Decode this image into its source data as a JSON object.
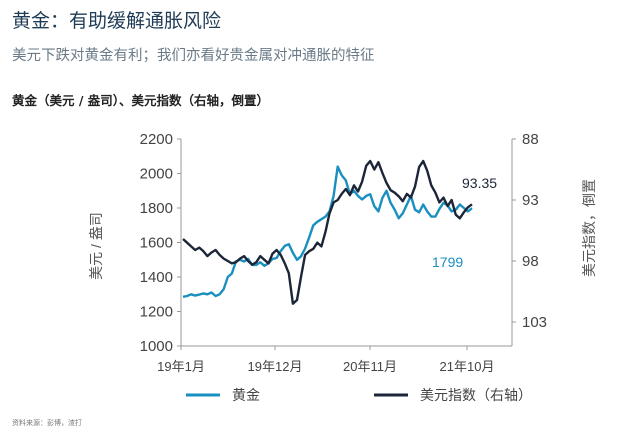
{
  "header": {
    "title": "黄金：有助缓解通胀风险",
    "subtitle": "美元下跌对黄金有利；我们亦看好贵金属对冲通胀的特征"
  },
  "chart_data": {
    "type": "line",
    "title": "黄金（美元 / 盎司）、美元指数（右轴，倒置）",
    "ylabel": "美元 / 盎司",
    "y2label": "美元指数，倒置",
    "ylim": [
      1000,
      2200
    ],
    "y2lim": [
      88,
      105
    ],
    "y2_inverted": true,
    "yticks": [
      "2200",
      "2000",
      "1800",
      "1600",
      "1400",
      "1200",
      "1000"
    ],
    "y2ticks": [
      "88",
      "93",
      "98",
      "103"
    ],
    "xticks": [
      "19年1月",
      "19年12月",
      "20年11月",
      "21年10月"
    ],
    "series": [
      {
        "name": "黄金",
        "color": "#1a8fc0",
        "axis": "left",
        "last_label": "1799",
        "x": [
          0,
          2,
          4,
          6,
          8,
          10,
          12,
          14,
          16,
          18,
          20,
          22,
          24,
          26,
          28,
          30,
          32,
          34,
          36,
          38,
          40,
          42,
          44,
          46,
          48,
          50,
          52,
          54,
          56,
          58,
          60,
          62,
          64,
          66,
          68,
          70,
          72,
          74,
          76,
          78,
          80,
          82,
          84,
          86,
          88,
          90,
          92,
          94,
          96,
          98,
          100,
          102,
          104,
          106,
          108,
          110,
          112,
          114,
          116,
          118,
          120,
          122,
          124,
          126,
          128,
          130,
          132,
          134,
          136,
          138,
          140,
          142
        ],
        "values": [
          1285,
          1290,
          1300,
          1292,
          1298,
          1305,
          1300,
          1310,
          1290,
          1300,
          1330,
          1400,
          1420,
          1490,
          1500,
          1490,
          1505,
          1470,
          1470,
          1485,
          1465,
          1480,
          1505,
          1510,
          1550,
          1580,
          1590,
          1540,
          1500,
          1520,
          1565,
          1630,
          1700,
          1720,
          1735,
          1750,
          1780,
          1870,
          2040,
          1990,
          1960,
          1880,
          1900,
          1870,
          1850,
          1870,
          1880,
          1810,
          1780,
          1860,
          1900,
          1830,
          1790,
          1740,
          1770,
          1820,
          1870,
          1790,
          1775,
          1820,
          1780,
          1750,
          1750,
          1795,
          1830,
          1815,
          1780,
          1790,
          1820,
          1800,
          1780,
          1799
        ]
      },
      {
        "name": "美元指数（右轴）",
        "color": "#1c2638",
        "axis": "right",
        "last_label": "93.35",
        "x": [
          0,
          2,
          4,
          6,
          8,
          10,
          12,
          14,
          16,
          18,
          20,
          22,
          24,
          26,
          28,
          30,
          32,
          34,
          36,
          38,
          40,
          42,
          44,
          46,
          48,
          50,
          52,
          54,
          56,
          58,
          60,
          62,
          64,
          66,
          68,
          70,
          72,
          74,
          76,
          78,
          80,
          82,
          84,
          86,
          88,
          90,
          92,
          94,
          96,
          98,
          100,
          102,
          104,
          106,
          108,
          110,
          112,
          114,
          116,
          118,
          120,
          122,
          124,
          126,
          128,
          130,
          132,
          134,
          136,
          138,
          140,
          142
        ],
        "values": [
          96.2,
          96.5,
          96.8,
          97.1,
          96.9,
          97.2,
          97.6,
          97.3,
          97.1,
          97.5,
          97.8,
          98.0,
          98.2,
          98.1,
          97.8,
          97.6,
          98.0,
          98.3,
          98.1,
          97.6,
          97.9,
          98.2,
          97.4,
          97.1,
          97.5,
          98.2,
          99.0,
          101.5,
          101.2,
          99.3,
          97.5,
          97.2,
          97.0,
          96.5,
          96.8,
          95.6,
          94.1,
          93.2,
          93.0,
          92.5,
          92.1,
          92.6,
          91.8,
          92.3,
          91.5,
          90.2,
          89.8,
          90.5,
          89.9,
          90.8,
          91.6,
          92.2,
          92.4,
          92.7,
          93.1,
          92.5,
          92.8,
          91.9,
          90.3,
          89.8,
          90.6,
          91.8,
          92.4,
          93.2,
          92.8,
          93.5,
          93.0,
          94.2,
          94.5,
          94.0,
          93.6,
          93.35
        ]
      }
    ],
    "annotations": [
      "93.35",
      "1799"
    ],
    "legend": {
      "position": "bottom",
      "items": [
        "黄金",
        "美元指数（右轴）"
      ]
    }
  },
  "source": "资料来源：彭博，渣打"
}
